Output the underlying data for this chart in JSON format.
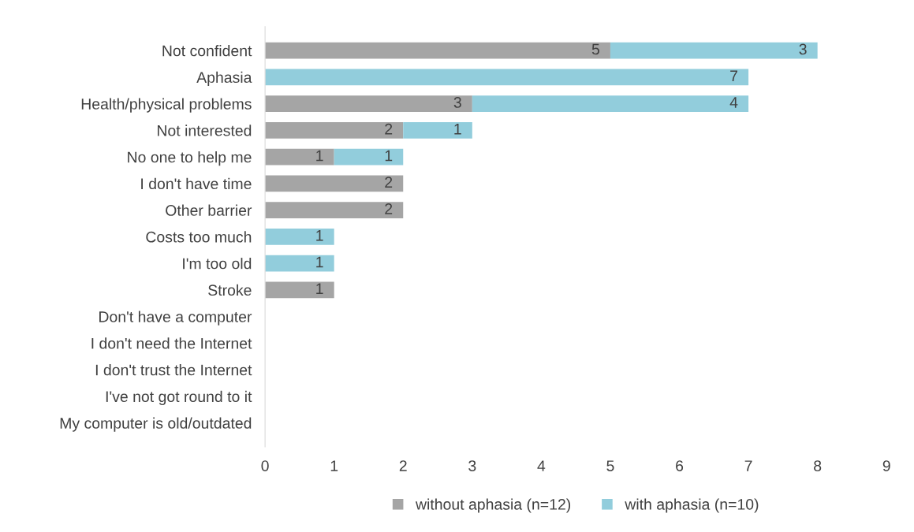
{
  "chart_data": {
    "type": "bar",
    "orientation": "horizontal",
    "stacked": true,
    "categories": [
      "Not confident",
      "Aphasia",
      "Health/physical problems",
      "Not interested",
      "No one to help me",
      "I don't have time",
      "Other barrier",
      "Costs too much",
      "I'm too old",
      "Stroke",
      "Don't have a computer",
      "I don't need the Internet",
      "I don't trust the Internet",
      "I've not got round to it",
      "My computer is old/outdated"
    ],
    "series": [
      {
        "name": "without aphasia (n=12)",
        "color": "#a5a5a5",
        "values": [
          5,
          0,
          3,
          2,
          1,
          2,
          2,
          0,
          0,
          1,
          0,
          0,
          0,
          0,
          0
        ],
        "value_labels": [
          "5",
          null,
          "3",
          "2",
          "1",
          "2",
          "2",
          null,
          null,
          "1",
          null,
          null,
          null,
          null,
          null
        ]
      },
      {
        "name": "with aphasia (n=10)",
        "color": "#92cddc",
        "values": [
          3,
          7,
          4,
          1,
          1,
          0,
          0,
          1,
          1,
          0,
          0,
          0,
          0,
          0,
          0
        ],
        "value_labels": [
          "3",
          "7",
          "4",
          "1",
          "1",
          null,
          null,
          "1",
          "1",
          null,
          null,
          null,
          null,
          null,
          null
        ]
      }
    ],
    "xlim": [
      0,
      9
    ],
    "xticks": [
      0,
      1,
      2,
      3,
      4,
      5,
      6,
      7,
      8,
      9
    ],
    "grid": false,
    "legend": "bottom"
  }
}
